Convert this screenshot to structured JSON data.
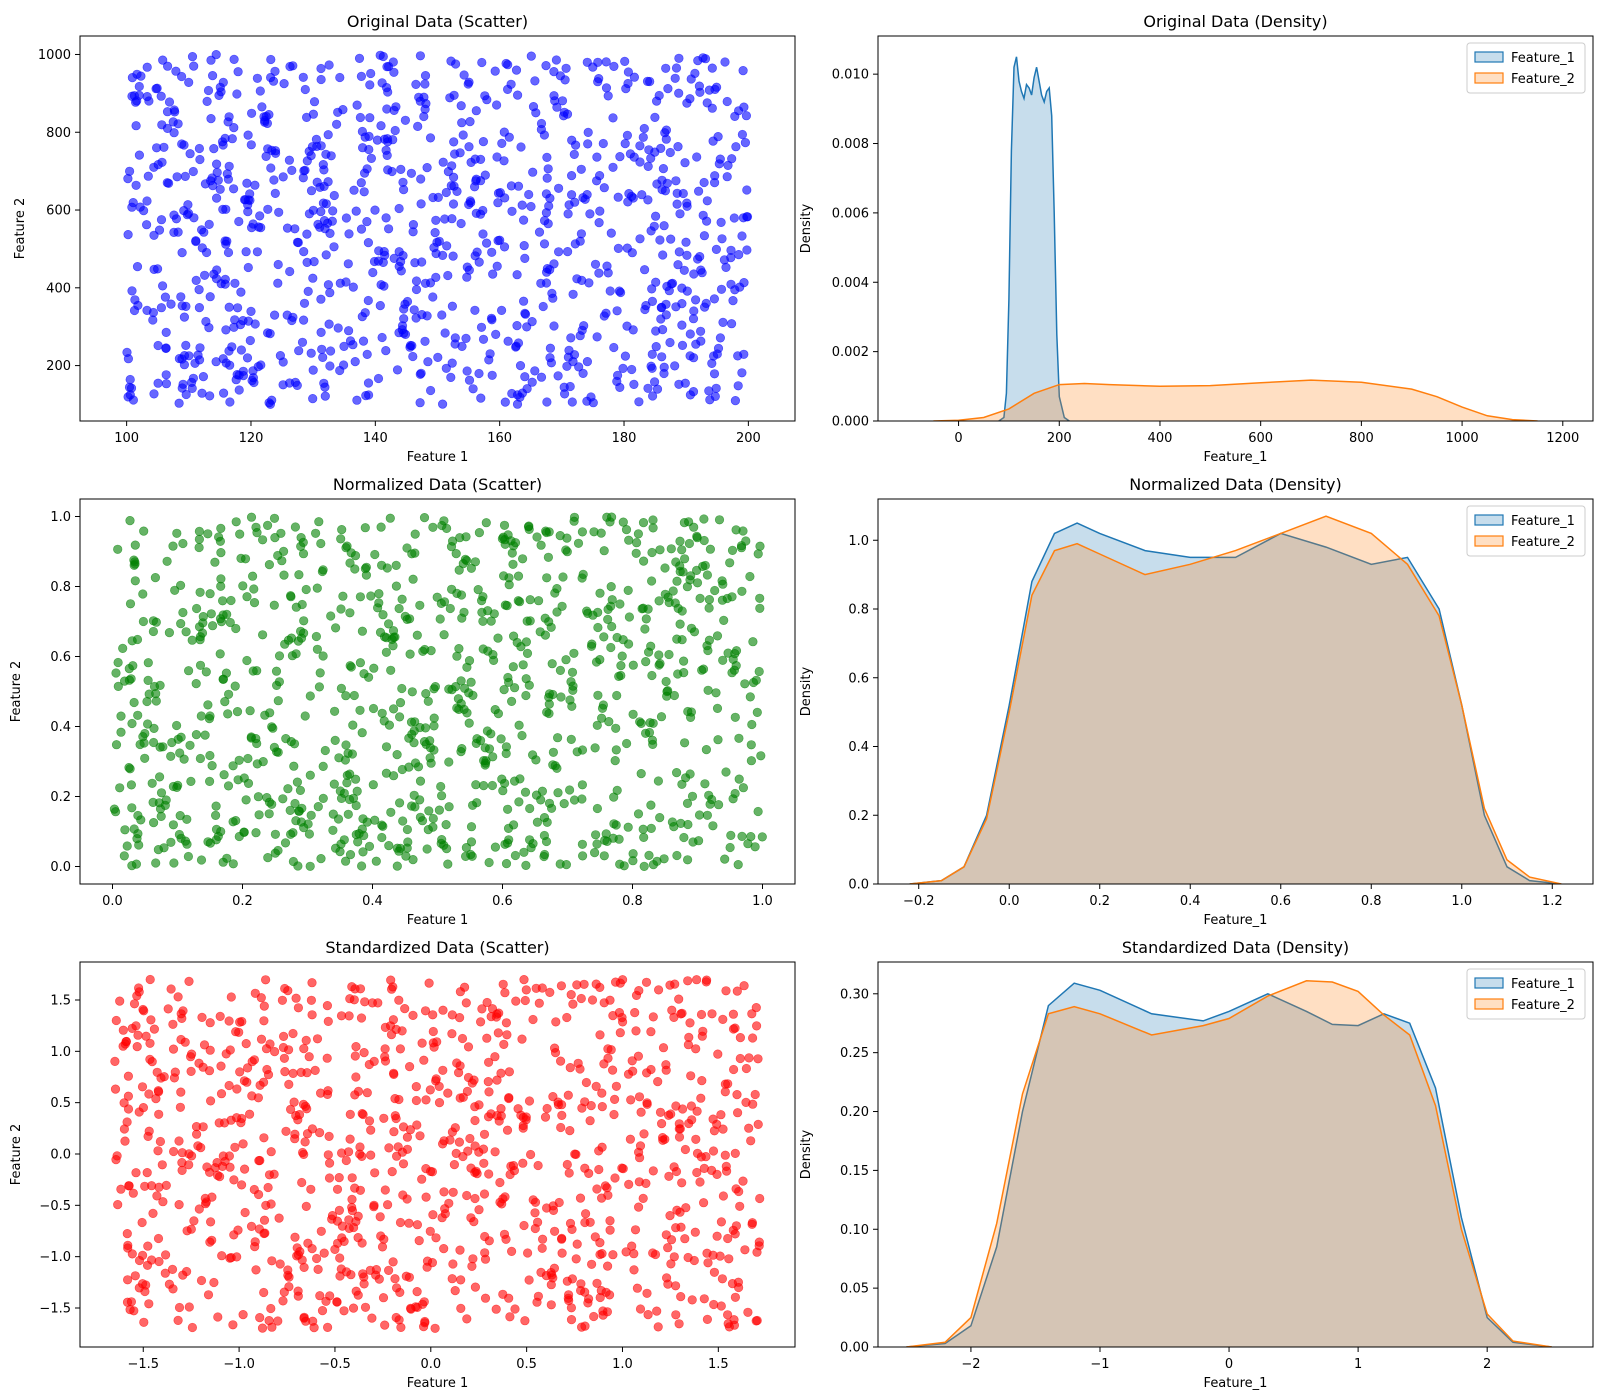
{
  "chart_data": [
    {
      "type": "scatter",
      "title": "Original Data (Scatter)",
      "xlabel": "Feature 1",
      "ylabel": "Feature 2",
      "xlim": [
        92.5,
        207.5
      ],
      "ylim": [
        57.5,
        1047.5
      ],
      "xticks": [
        100,
        120,
        140,
        160,
        180,
        200
      ],
      "yticks": [
        200,
        400,
        600,
        800,
        1000
      ],
      "color": "#0000ff",
      "seed": 11,
      "n_points": 1000,
      "x_range": [
        100,
        200
      ],
      "y_range": [
        100,
        1000
      ],
      "grid": false
    },
    {
      "type": "area",
      "title": "Original Data (Density)",
      "xlabel": "Feature_1",
      "ylabel": "Density",
      "xlim": [
        -160,
        1260
      ],
      "ylim": [
        0,
        0.0111
      ],
      "xticks": [
        0,
        200,
        400,
        600,
        800,
        1000,
        1200
      ],
      "yticks": [
        0.0,
        0.002,
        0.004,
        0.006,
        0.008,
        0.01
      ],
      "ytick_labels": [
        "0.000",
        "0.002",
        "0.004",
        "0.006",
        "0.008",
        "0.010"
      ],
      "legend": "top-right",
      "grid": false,
      "series": [
        {
          "name": "Feature_1",
          "color": "#1f77b4",
          "x": [
            80,
            90,
            95,
            100,
            105,
            110,
            115,
            120,
            125,
            130,
            135,
            140,
            145,
            150,
            155,
            160,
            165,
            170,
            175,
            180,
            185,
            190,
            195,
            200,
            210,
            220
          ],
          "y": [
            0,
            0.0001,
            0.0008,
            0.0035,
            0.0078,
            0.0102,
            0.0105,
            0.0098,
            0.0095,
            0.0093,
            0.0097,
            0.0096,
            0.0094,
            0.0099,
            0.0102,
            0.0098,
            0.0094,
            0.0092,
            0.0095,
            0.0096,
            0.0088,
            0.006,
            0.0025,
            0.0007,
            0.0001,
            0
          ]
        },
        {
          "name": "Feature_2",
          "color": "#ff7f0e",
          "x": [
            -50,
            0,
            50,
            100,
            150,
            200,
            250,
            300,
            400,
            500,
            600,
            700,
            800,
            900,
            950,
            1000,
            1050,
            1100,
            1150
          ],
          "y": [
            0,
            2e-05,
            0.0001,
            0.00035,
            0.0008,
            0.00105,
            0.00108,
            0.00105,
            0.001,
            0.00102,
            0.0011,
            0.00118,
            0.00112,
            0.00092,
            0.0007,
            0.0004,
            0.00015,
            4e-05,
            0
          ]
        }
      ]
    },
    {
      "type": "scatter",
      "title": "Normalized Data (Scatter)",
      "xlabel": "Feature 1",
      "ylabel": "Feature 2",
      "xlim": [
        -0.05,
        1.05
      ],
      "ylim": [
        -0.05,
        1.05
      ],
      "xticks": [
        0.0,
        0.2,
        0.4,
        0.6,
        0.8,
        1.0
      ],
      "yticks": [
        0.0,
        0.2,
        0.4,
        0.6,
        0.8,
        1.0
      ],
      "xtick_labels": [
        "0.0",
        "0.2",
        "0.4",
        "0.6",
        "0.8",
        "1.0"
      ],
      "ytick_labels": [
        "0.0",
        "0.2",
        "0.4",
        "0.6",
        "0.8",
        "1.0"
      ],
      "color": "#008000",
      "seed": 11,
      "n_points": 1000,
      "x_range": [
        0,
        1
      ],
      "y_range": [
        0,
        1
      ],
      "grid": false
    },
    {
      "type": "area",
      "title": "Normalized Data (Density)",
      "xlabel": "Feature_1",
      "ylabel": "Density",
      "xlim": [
        -0.29,
        1.29
      ],
      "ylim": [
        0,
        1.12
      ],
      "xticks": [
        -0.2,
        0.0,
        0.2,
        0.4,
        0.6,
        0.8,
        1.0,
        1.2
      ],
      "yticks": [
        0.0,
        0.2,
        0.4,
        0.6,
        0.8,
        1.0
      ],
      "xtick_labels": [
        "−0.2",
        "0.0",
        "0.2",
        "0.4",
        "0.6",
        "0.8",
        "1.0",
        "1.2"
      ],
      "ytick_labels": [
        "0.0",
        "0.2",
        "0.4",
        "0.6",
        "0.8",
        "1.0"
      ],
      "legend": "top-right",
      "grid": false,
      "series": [
        {
          "name": "Feature_1",
          "color": "#1f77b4",
          "x": [
            -0.22,
            -0.15,
            -0.1,
            -0.05,
            0.0,
            0.05,
            0.1,
            0.15,
            0.2,
            0.3,
            0.4,
            0.5,
            0.6,
            0.7,
            0.8,
            0.88,
            0.95,
            1.0,
            1.05,
            1.1,
            1.15,
            1.22
          ],
          "y": [
            0,
            0.01,
            0.05,
            0.2,
            0.52,
            0.88,
            1.02,
            1.05,
            1.02,
            0.97,
            0.95,
            0.95,
            1.02,
            0.98,
            0.93,
            0.95,
            0.8,
            0.52,
            0.2,
            0.05,
            0.01,
            0
          ]
        },
        {
          "name": "Feature_2",
          "color": "#ff7f0e",
          "x": [
            -0.22,
            -0.15,
            -0.1,
            -0.05,
            0.0,
            0.05,
            0.1,
            0.15,
            0.2,
            0.3,
            0.4,
            0.5,
            0.6,
            0.7,
            0.8,
            0.88,
            0.95,
            1.0,
            1.05,
            1.1,
            1.15,
            1.22
          ],
          "y": [
            0,
            0.01,
            0.05,
            0.19,
            0.5,
            0.84,
            0.97,
            0.99,
            0.96,
            0.9,
            0.93,
            0.97,
            1.02,
            1.07,
            1.02,
            0.93,
            0.78,
            0.52,
            0.22,
            0.07,
            0.02,
            0
          ]
        }
      ]
    },
    {
      "type": "scatter",
      "title": "Standardized Data (Scatter)",
      "xlabel": "Feature 1",
      "ylabel": "Feature 2",
      "xlim": [
        -1.83,
        1.9
      ],
      "ylim": [
        -1.88,
        1.87
      ],
      "xticks": [
        -1.5,
        -1.0,
        -0.5,
        0.0,
        0.5,
        1.0,
        1.5
      ],
      "yticks": [
        -1.5,
        -1.0,
        -0.5,
        0.0,
        0.5,
        1.0,
        1.5
      ],
      "xtick_labels": [
        "−1.5",
        "−1.0",
        "−0.5",
        "0.0",
        "0.5",
        "1.0",
        "1.5"
      ],
      "ytick_labels": [
        "−1.5",
        "−1.0",
        "−0.5",
        "0.0",
        "0.5",
        "1.0",
        "1.5"
      ],
      "color": "#ff0000",
      "seed": 11,
      "n_points": 1000,
      "x_range": [
        -1.65,
        1.72
      ],
      "y_range": [
        -1.7,
        1.7
      ],
      "grid": false
    },
    {
      "type": "area",
      "title": "Standardized Data (Density)",
      "xlabel": "Feature_1",
      "ylabel": "Density",
      "xlim": [
        -2.72,
        2.82
      ],
      "ylim": [
        0,
        0.327
      ],
      "xticks": [
        -2,
        -1,
        0,
        1,
        2
      ],
      "yticks": [
        0.0,
        0.05,
        0.1,
        0.15,
        0.2,
        0.25,
        0.3
      ],
      "xtick_labels": [
        "−2",
        "−1",
        "0",
        "1",
        "2"
      ],
      "ytick_labels": [
        "0.00",
        "0.05",
        "0.10",
        "0.15",
        "0.20",
        "0.25",
        "0.30"
      ],
      "legend": "top-right",
      "grid": false,
      "series": [
        {
          "name": "Feature_1",
          "color": "#1f77b4",
          "x": [
            -2.5,
            -2.2,
            -2.0,
            -1.8,
            -1.6,
            -1.4,
            -1.2,
            -1.0,
            -0.6,
            -0.2,
            0.0,
            0.3,
            0.6,
            0.8,
            1.0,
            1.2,
            1.4,
            1.6,
            1.8,
            2.0,
            2.2,
            2.5
          ],
          "y": [
            0,
            0.003,
            0.018,
            0.085,
            0.2,
            0.29,
            0.309,
            0.303,
            0.283,
            0.277,
            0.285,
            0.3,
            0.285,
            0.274,
            0.273,
            0.283,
            0.275,
            0.22,
            0.11,
            0.025,
            0.004,
            0
          ]
        },
        {
          "name": "Feature_2",
          "color": "#ff7f0e",
          "x": [
            -2.5,
            -2.2,
            -2.0,
            -1.8,
            -1.6,
            -1.4,
            -1.2,
            -1.0,
            -0.6,
            -0.2,
            0.0,
            0.3,
            0.6,
            0.8,
            1.0,
            1.2,
            1.4,
            1.6,
            1.8,
            2.0,
            2.2,
            2.5
          ],
          "y": [
            0,
            0.004,
            0.025,
            0.105,
            0.215,
            0.283,
            0.289,
            0.283,
            0.265,
            0.273,
            0.279,
            0.298,
            0.311,
            0.31,
            0.302,
            0.282,
            0.265,
            0.205,
            0.1,
            0.028,
            0.005,
            0
          ]
        }
      ]
    }
  ]
}
